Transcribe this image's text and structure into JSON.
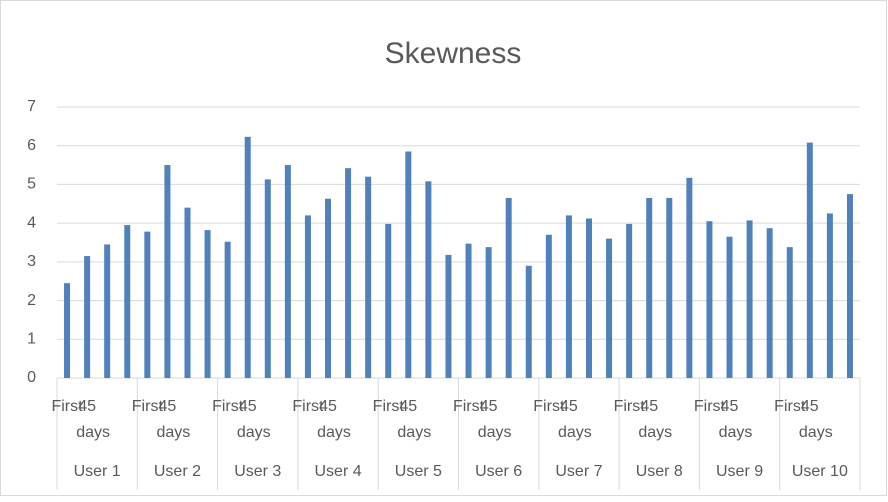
{
  "chart_data": {
    "type": "bar",
    "title": "Skewness",
    "categories": [
      "First",
      "45 days",
      null,
      null,
      "First",
      "45 days",
      null,
      null,
      "First",
      "45 days",
      null,
      null,
      "First",
      "45 days",
      null,
      null,
      "First",
      "45 days",
      null,
      null,
      "First",
      "45 days",
      null,
      null,
      "First",
      "45 days",
      null,
      null,
      "First",
      "45 days",
      null,
      null,
      "First",
      "45 days",
      null,
      null,
      "First",
      "45 days",
      null,
      null
    ],
    "groups": [
      "User 1",
      "User 2",
      "User 3",
      "User 4",
      "User 5",
      "User 6",
      "User 7",
      "User 8",
      "User 9",
      "User 10"
    ],
    "values": [
      2.45,
      3.15,
      3.45,
      3.95,
      3.78,
      5.5,
      4.4,
      3.82,
      3.52,
      6.23,
      5.13,
      5.5,
      4.2,
      4.63,
      5.42,
      5.2,
      3.98,
      5.85,
      5.08,
      3.18,
      3.47,
      3.38,
      4.65,
      2.9,
      3.7,
      4.2,
      4.12,
      3.6,
      3.98,
      4.65,
      4.65,
      5.17,
      4.05,
      3.65,
      4.07,
      3.87,
      3.38,
      6.08,
      4.25,
      4.75
    ],
    "color": "#4f81bd",
    "ylim": [
      0,
      7
    ],
    "yticks": [
      0,
      1,
      2,
      3,
      4,
      5,
      6,
      7
    ],
    "grid": true
  }
}
